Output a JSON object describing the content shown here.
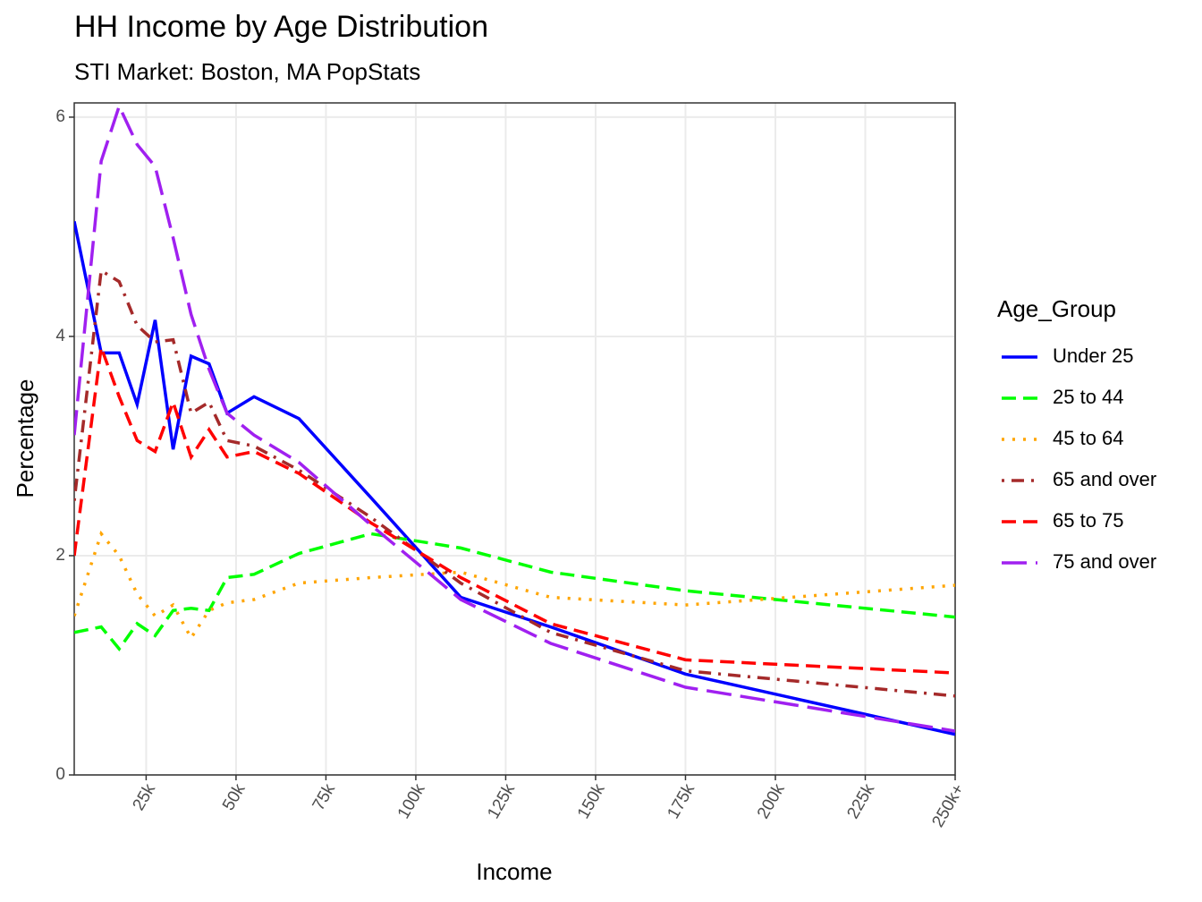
{
  "chart_data": {
    "type": "line",
    "title": "HH Income by Age Distribution",
    "subtitle": "STI Market: Boston, MA PopStats",
    "x_label": "Income",
    "y_label": "Percentage",
    "legend_title": "Age_Group",
    "x": [
      5,
      12.5,
      17.5,
      22.5,
      27.5,
      32.5,
      37.5,
      42.5,
      47.5,
      55,
      67.5,
      87.5,
      112.5,
      137.5,
      175,
      250
    ],
    "series": [
      {
        "name": "Under 25",
        "color": "#0000ff",
        "linetype": "solid",
        "values": [
          5.05,
          3.85,
          3.85,
          3.38,
          4.15,
          2.97,
          3.82,
          3.75,
          3.3,
          3.45,
          3.25,
          2.53,
          1.62,
          1.35,
          0.92,
          0.37
        ]
      },
      {
        "name": "25 to 44",
        "color": "#00ff00",
        "linetype": "dashed",
        "values": [
          1.3,
          1.35,
          1.15,
          1.38,
          1.27,
          1.5,
          1.52,
          1.5,
          1.8,
          1.83,
          2.02,
          2.2,
          2.07,
          1.85,
          1.68,
          1.44
        ]
      },
      {
        "name": "45 to 64",
        "color": "#ffa500",
        "linetype": "dotted",
        "values": [
          1.45,
          2.2,
          2.0,
          1.65,
          1.45,
          1.55,
          1.25,
          1.5,
          1.57,
          1.6,
          1.75,
          1.8,
          1.85,
          1.62,
          1.55,
          1.73
        ]
      },
      {
        "name": "65 and over",
        "color": "#a52a2a",
        "linetype": "dotdash",
        "values": [
          2.5,
          4.6,
          4.5,
          4.1,
          3.95,
          3.97,
          3.3,
          3.4,
          3.05,
          3.0,
          2.78,
          2.35,
          1.75,
          1.3,
          0.95,
          0.72
        ]
      },
      {
        "name": "65 to 75",
        "color": "#ff0000",
        "linetype": "dashed",
        "values": [
          2.0,
          3.9,
          3.45,
          3.05,
          2.95,
          3.4,
          2.9,
          3.15,
          2.9,
          2.95,
          2.75,
          2.3,
          1.8,
          1.38,
          1.05,
          0.93
        ]
      },
      {
        "name": "75 and over",
        "color": "#a020f0",
        "linetype": "longdash",
        "values": [
          3.1,
          5.6,
          6.1,
          5.75,
          5.55,
          4.9,
          4.2,
          3.7,
          3.3,
          3.1,
          2.85,
          2.28,
          1.6,
          1.2,
          0.8,
          0.4
        ]
      }
    ],
    "xlim": [
      5,
      250
    ],
    "xticks": [
      {
        "value": 25,
        "label": "25k"
      },
      {
        "value": 50,
        "label": "50k"
      },
      {
        "value": 75,
        "label": "75k"
      },
      {
        "value": 100,
        "label": "100k"
      },
      {
        "value": 125,
        "label": "125k"
      },
      {
        "value": 150,
        "label": "150k"
      },
      {
        "value": 175,
        "label": "175k"
      },
      {
        "value": 200,
        "label": "200k"
      },
      {
        "value": 225,
        "label": "225k"
      },
      {
        "value": 250,
        "label": "250k+"
      }
    ],
    "ylim": [
      0,
      6.13
    ],
    "yticks": [
      0,
      2,
      4,
      6
    ],
    "grid": true,
    "legend": "right"
  }
}
